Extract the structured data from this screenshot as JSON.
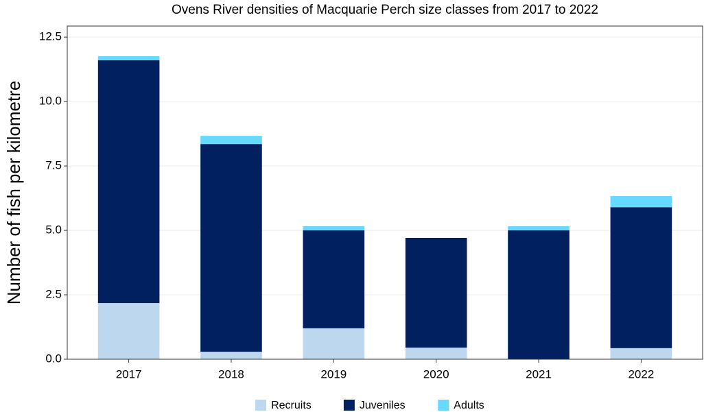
{
  "chart_data": {
    "type": "stacked_bar",
    "title": "Ovens River densities of Macquarie Perch size classes from 2017 to 2022",
    "y_label": "Number of fish per kilometre",
    "categories": [
      "2017",
      "2018",
      "2019",
      "2020",
      "2021",
      "2022"
    ],
    "series": [
      {
        "name": "Recruits",
        "color": "#bdd7ee",
        "values": [
          2.18,
          0.29,
          1.2,
          0.45,
          0,
          0.43
        ]
      },
      {
        "name": "Juveniles",
        "color": "#002060",
        "values": [
          9.42,
          8.06,
          3.8,
          4.26,
          5.0,
          5.47
        ]
      },
      {
        "name": "Adults",
        "color": "#66d9ff",
        "values": [
          0.16,
          0.32,
          0.16,
          0,
          0.16,
          0.43
        ]
      }
    ],
    "ylim": [
      0,
      12.93
    ],
    "yticks": [
      {
        "value": 0,
        "label": "0.0"
      },
      2.5,
      {
        "value": 5,
        "label": "5.0"
      },
      7.5,
      {
        "value": 10,
        "label": "10.0"
      },
      12.5
    ],
    "grid": true,
    "legend": "bottom"
  }
}
